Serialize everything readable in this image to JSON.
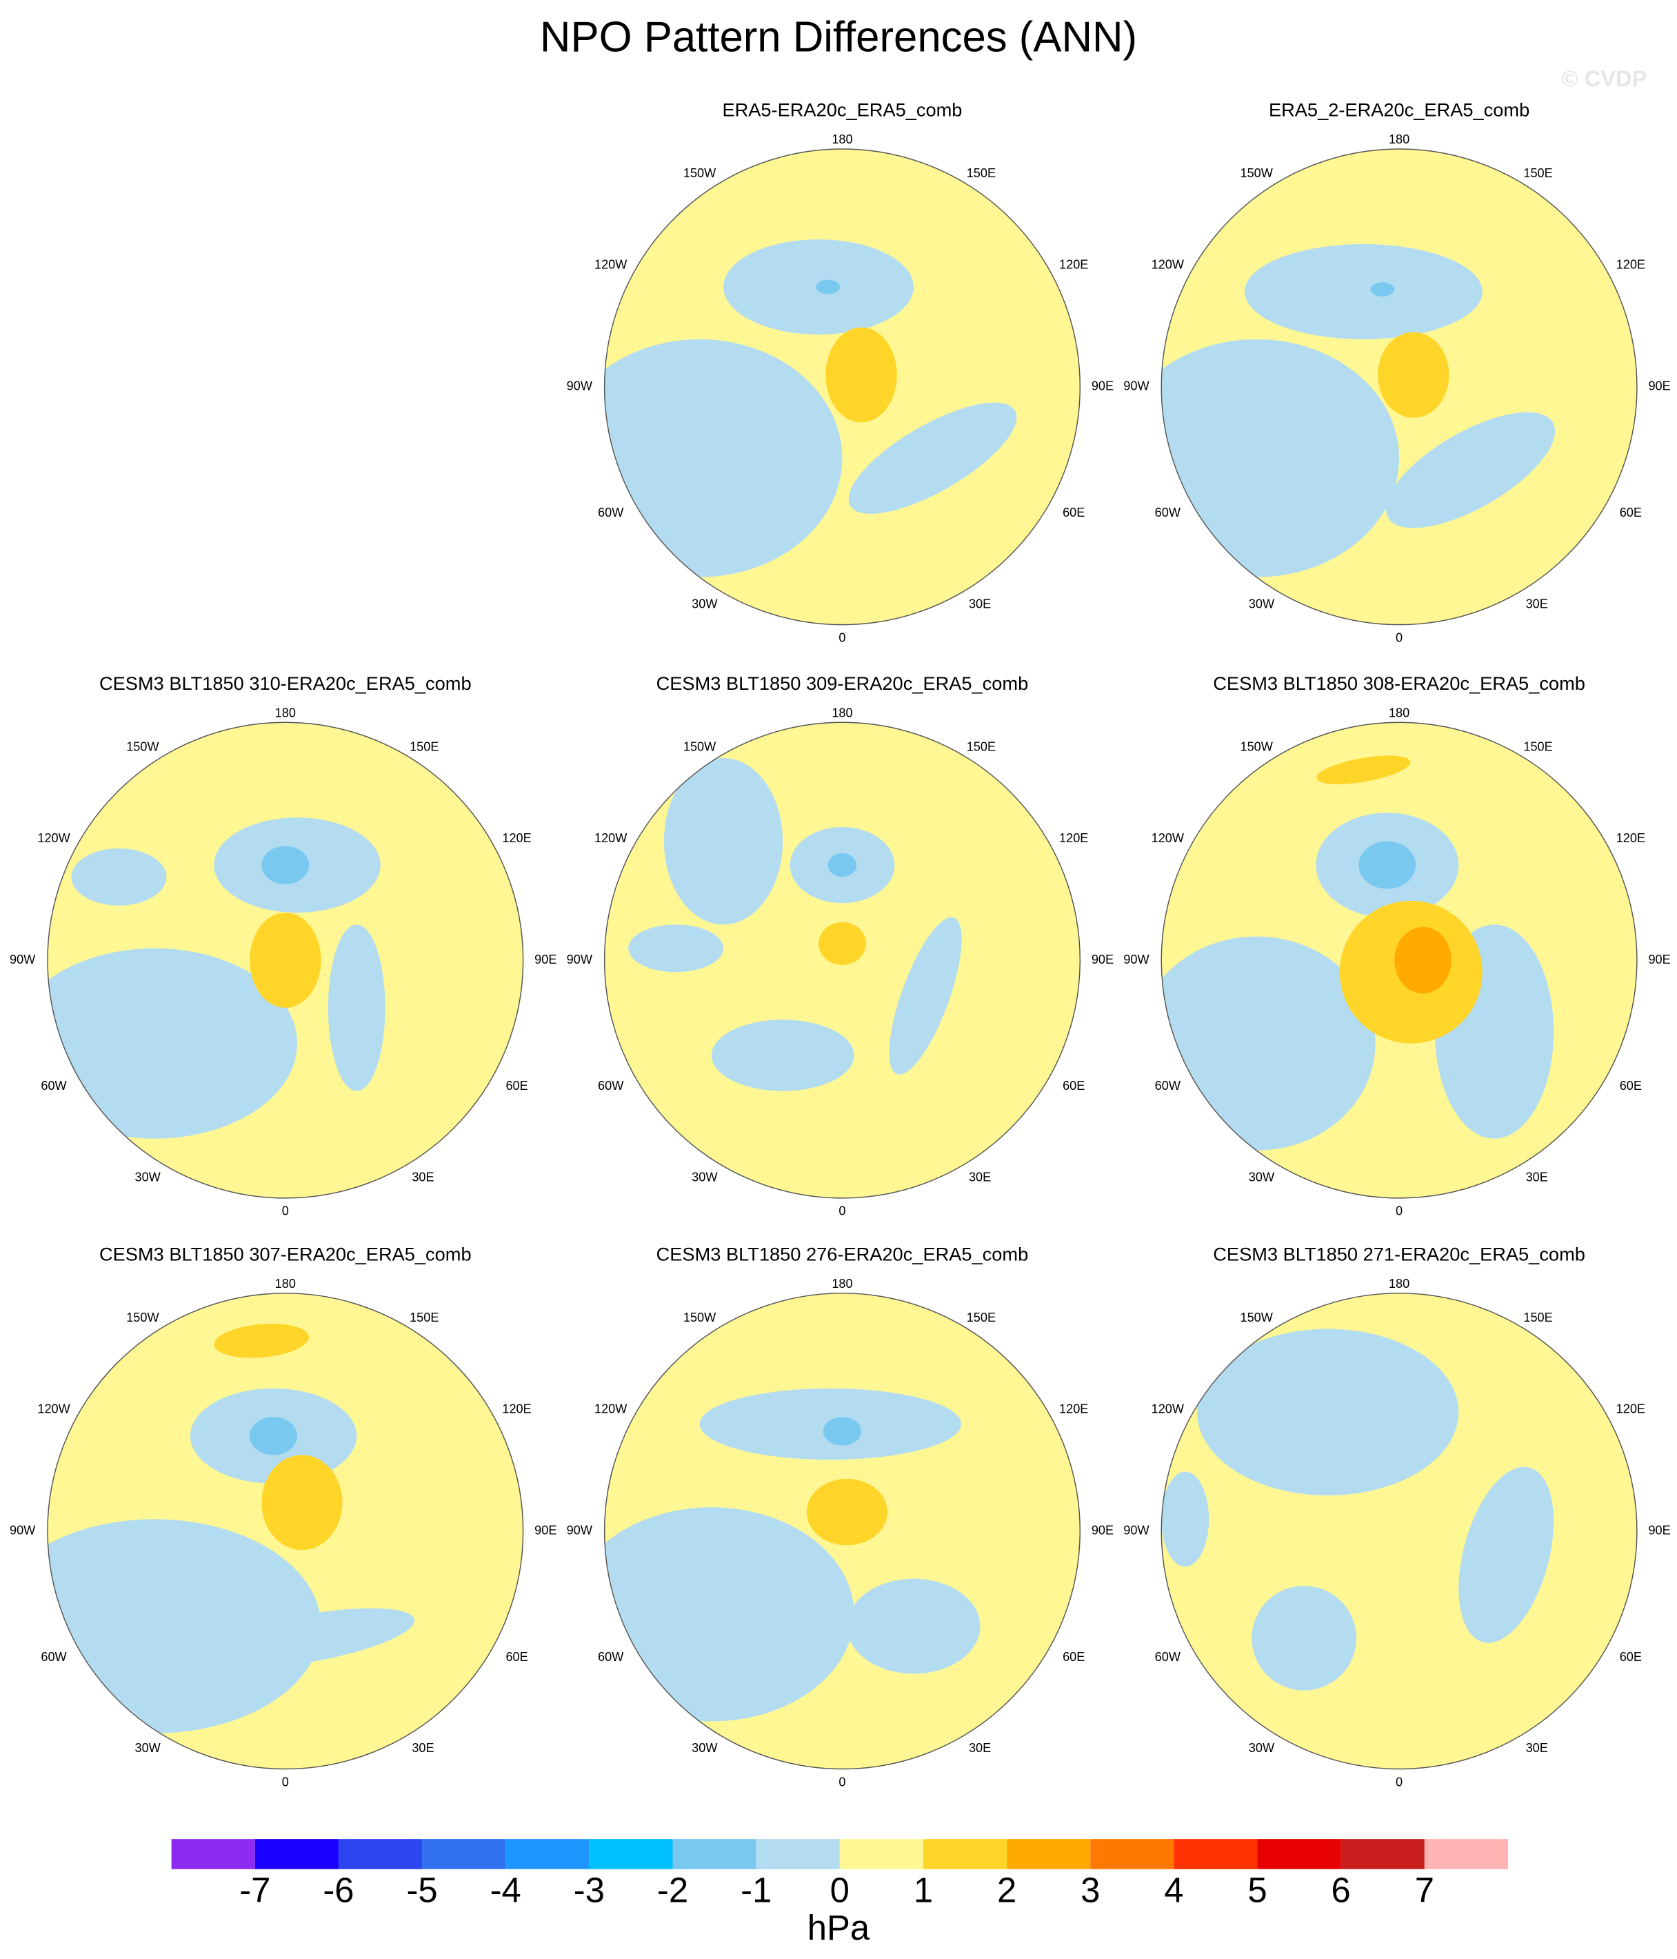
{
  "title": "NPO Pattern Differences (ANN)",
  "watermark": "© CVDP",
  "longitude_labels": [
    "180",
    "150E",
    "120E",
    "90E",
    "60E",
    "30E",
    "0",
    "30W",
    "60W",
    "90W",
    "120W",
    "150W"
  ],
  "panels": [
    {
      "title": "ERA5-ERA20c_ERA5_comb"
    },
    {
      "title": "ERA5_2-ERA20c_ERA5_comb"
    },
    {
      "title": "CESM3 BLT1850 310-ERA20c_ERA5_comb"
    },
    {
      "title": "CESM3 BLT1850 309-ERA20c_ERA5_comb"
    },
    {
      "title": "CESM3 BLT1850 308-ERA20c_ERA5_comb"
    },
    {
      "title": "CESM3 BLT1850 307-ERA20c_ERA5_comb"
    },
    {
      "title": "CESM3 BLT1850 276-ERA20c_ERA5_comb"
    },
    {
      "title": "CESM3 BLT1850 271-ERA20c_ERA5_comb"
    }
  ],
  "colorbar": {
    "ticks": [
      -7,
      -6,
      -5,
      -4,
      -3,
      -2,
      -1,
      0,
      1,
      2,
      3,
      4,
      5,
      6,
      7
    ],
    "unit": "hPa",
    "colors": [
      "#8d2bf0",
      "#1a00ff",
      "#2b45f0",
      "#3070ee",
      "#1e96ff",
      "#00c0ff",
      "#78c8f0",
      "#b4dcf0",
      "#fff794",
      "#ffd52a",
      "#ffaa00",
      "#ff7800",
      "#ff3200",
      "#e60000",
      "#c81e1e",
      "#ffb4b4"
    ]
  }
}
